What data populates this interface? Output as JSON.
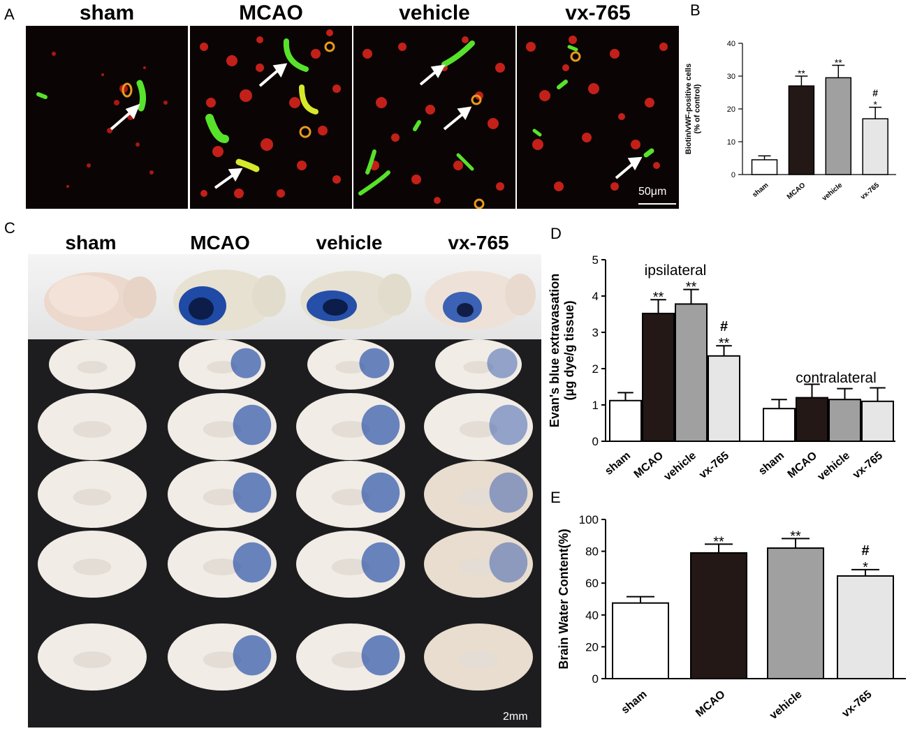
{
  "panels": {
    "A": {
      "letter": "A",
      "labels": [
        "sham",
        "MCAO",
        "vehicle",
        "vx-765"
      ],
      "scale_bar": "50μm"
    },
    "C": {
      "letter": "C",
      "labels": [
        "sham",
        "MCAO",
        "vehicle",
        "vx-765"
      ],
      "scale_bar": "2mm"
    }
  },
  "colors": {
    "sham": "#ffffff",
    "MCAO": "#231816",
    "vehicle": "#a0a0a0",
    "vx765": "#e6e6e6",
    "stain_red": "#e0231c",
    "stain_green": "#4cd629",
    "evans_blue": "#1f4aa6"
  },
  "chart_data": [
    {
      "panel": "B",
      "type": "bar",
      "categories": [
        "sham",
        "MCAO",
        "vehicle",
        "vx-765"
      ],
      "values": [
        4.5,
        27,
        29.5,
        17
      ],
      "errors": [
        1.2,
        3,
        3.8,
        3.5
      ],
      "significance": [
        "",
        "**",
        "**",
        "#\n*"
      ],
      "ylabel": "Biotin/vWF-positive cells\n(% of control)",
      "ylim": [
        0,
        40
      ],
      "yticks": [
        0,
        10,
        20,
        30,
        40
      ]
    },
    {
      "panel": "D",
      "type": "bar",
      "groups": [
        "ipsilateral",
        "contralateral"
      ],
      "categories": [
        "sham",
        "MCAO",
        "vehicle",
        "vx-765"
      ],
      "series": [
        {
          "group": "ipsilateral",
          "values": [
            1.12,
            3.52,
            3.78,
            2.35
          ],
          "errors": [
            0.22,
            0.38,
            0.4,
            0.28
          ],
          "significance": [
            "",
            "**",
            "**",
            "#\n**"
          ]
        },
        {
          "group": "contralateral",
          "values": [
            0.9,
            1.2,
            1.15,
            1.1
          ],
          "errors": [
            0.25,
            0.37,
            0.3,
            0.37
          ],
          "significance": [
            "",
            "",
            "",
            ""
          ]
        }
      ],
      "ylabel": "Evan's blue extravasation\n(μg dye/g tissue)",
      "ylim": [
        0,
        5
      ],
      "yticks": [
        0,
        1,
        2,
        3,
        4,
        5
      ]
    },
    {
      "panel": "E",
      "type": "bar",
      "categories": [
        "sham",
        "MCAO",
        "vehicle",
        "vx-765"
      ],
      "values": [
        47.5,
        79,
        82,
        64.5
      ],
      "errors": [
        4,
        5.5,
        6,
        4
      ],
      "significance": [
        "",
        "**",
        "**",
        "#\n*"
      ],
      "ylabel": "Brain Water Content(%)",
      "ylim": [
        0,
        100
      ],
      "yticks": [
        0,
        20,
        40,
        60,
        80,
        100
      ]
    }
  ]
}
